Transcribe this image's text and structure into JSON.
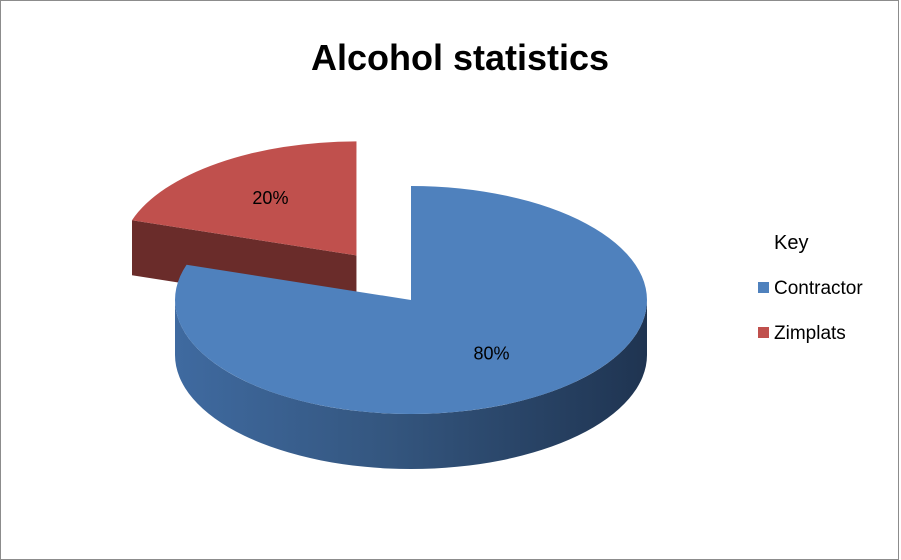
{
  "chart_data": {
    "type": "pie",
    "title": "Alcohol statistics",
    "legend_title": "Key",
    "legend_position": "right",
    "slices": [
      {
        "label": "Contractor",
        "value": 80,
        "data_label": "80%",
        "color": "#4F81BD",
        "exploded": false
      },
      {
        "label": "Zimplats",
        "value": 20,
        "data_label": "20%",
        "color": "#C0504D",
        "exploded": true
      }
    ]
  }
}
